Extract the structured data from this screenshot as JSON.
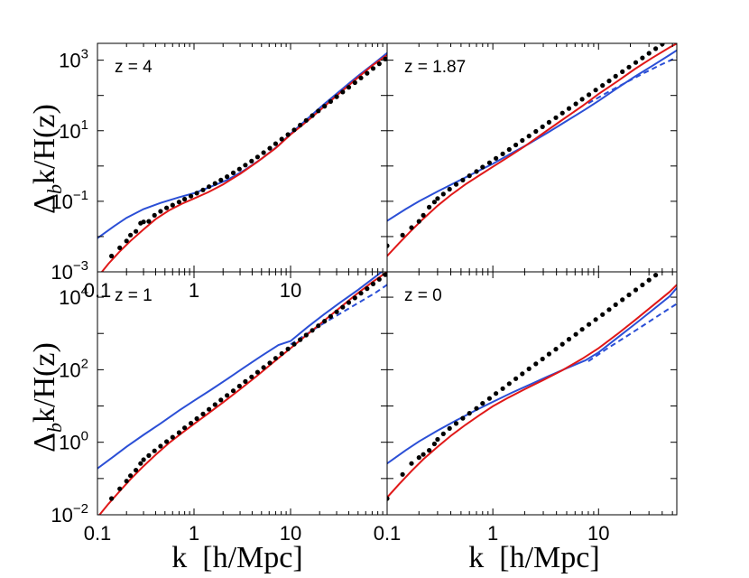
{
  "chart_data": {
    "type": "line",
    "layout": "2x2 panels, log-log axes",
    "xlabel": "k  [h/Mpc]",
    "ylabel": "Δ_b k/H(z)",
    "ylabel_parts": [
      "Δ",
      "b",
      "k/H(z)"
    ],
    "x_ticks": [
      {
        "value": 0.1,
        "label": "0.1"
      },
      {
        "value": 1,
        "label": "1"
      },
      {
        "value": 10,
        "label": "10"
      }
    ],
    "series_styles": {
      "simulation": {
        "color": "#000000",
        "style": "points"
      },
      "model_red": {
        "color": "#e01818",
        "style": "solid"
      },
      "model_blue": {
        "color": "#2b4fd6",
        "style": "solid"
      },
      "model_blue_dashed": {
        "color": "#2b4fd6",
        "style": "dashed"
      }
    },
    "panels": [
      {
        "label": "z = 4",
        "xlim": [
          0.1,
          100
        ],
        "ylim": [
          0.001,
          3000
        ],
        "y_ticks": [
          {
            "value": 0.001,
            "base": "10",
            "exp": "−3"
          },
          {
            "value": 0.1,
            "base": "10",
            "exp": "−1"
          },
          {
            "value": 10,
            "base": "10",
            "exp": "1"
          },
          {
            "value": 1000,
            "base": "10",
            "exp": "3"
          }
        ],
        "points_k": [
          0.14,
          0.17,
          0.2,
          0.22,
          0.25,
          0.28,
          0.3,
          0.34,
          0.39,
          0.45,
          0.52,
          0.6,
          0.7,
          0.8,
          0.93,
          1.07,
          1.24,
          1.43,
          1.65,
          1.9,
          2.2,
          2.55,
          2.95,
          3.4,
          3.95,
          4.55,
          5.25,
          6.1,
          7.0,
          8.1,
          9.4,
          10.9,
          12.6,
          14.5,
          16.8,
          19.4,
          22.5,
          26,
          30,
          34.7,
          40.1,
          46.4,
          53.6,
          62,
          71.7,
          82.9,
          95.8
        ],
        "points_y": [
          0.0028,
          0.0048,
          0.0075,
          0.011,
          0.014,
          0.024,
          0.026,
          0.027,
          0.04,
          0.052,
          0.065,
          0.078,
          0.095,
          0.115,
          0.14,
          0.17,
          0.21,
          0.26,
          0.32,
          0.4,
          0.5,
          0.64,
          0.82,
          1.06,
          1.38,
          1.8,
          2.4,
          3.2,
          4.3,
          5.8,
          7.8,
          10.6,
          14.5,
          19.7,
          26.8,
          36.5,
          49.6,
          67.5,
          91.8,
          124.9,
          169.9,
          231,
          314,
          427,
          581,
          790,
          1075
        ],
        "red_k": [
          0.1,
          0.13,
          0.17,
          0.22,
          0.3,
          0.4,
          0.55,
          0.75,
          1,
          1.4,
          2,
          3,
          4.5,
          7,
          10,
          15,
          22,
          32,
          47,
          70,
          100
        ],
        "red_y": [
          0.0007,
          0.0017,
          0.0038,
          0.0075,
          0.016,
          0.031,
          0.055,
          0.085,
          0.12,
          0.18,
          0.3,
          0.6,
          1.3,
          3.2,
          7.8,
          19,
          47,
          115,
          280,
          700,
          1400
        ],
        "blue_k": [
          0.1,
          0.15,
          0.2,
          0.3,
          0.45,
          0.7,
          1,
          1.5,
          2.2,
          3.3,
          5,
          7.5,
          10,
          15,
          22,
          33,
          50,
          75,
          100
        ],
        "blue_y": [
          0.009,
          0.02,
          0.034,
          0.06,
          0.09,
          0.13,
          0.17,
          0.26,
          0.4,
          0.75,
          1.6,
          3.8,
          8.2,
          22,
          55,
          140,
          360,
          850,
          1600
        ],
        "blue_dash_k": [],
        "blue_dash_y": []
      },
      {
        "label": "z = 1.87",
        "xlim": [
          0.1,
          55
        ],
        "ylim": [
          0.001,
          3000
        ],
        "y_ticks": [],
        "points_k": [
          0.1,
          0.14,
          0.17,
          0.2,
          0.22,
          0.25,
          0.28,
          0.3,
          0.34,
          0.39,
          0.45,
          0.52,
          0.6,
          0.7,
          0.8,
          0.93,
          1.07,
          1.24,
          1.43,
          1.65,
          1.9,
          2.2,
          2.55,
          2.95,
          3.4,
          3.95,
          4.55,
          5.25,
          6.1,
          7.0,
          8.1,
          9.4,
          10.9,
          12.6,
          14.5,
          16.8,
          19.4,
          22.5,
          26,
          30,
          34.7,
          40.1,
          46.4
        ],
        "points_y": [
          0.0055,
          0.011,
          0.018,
          0.027,
          0.04,
          0.068,
          0.095,
          0.12,
          0.16,
          0.22,
          0.3,
          0.4,
          0.53,
          0.7,
          0.93,
          1.24,
          1.65,
          2.2,
          2.95,
          3.95,
          5.3,
          7.1,
          9.6,
          12.9,
          17.4,
          23.5,
          31.7,
          42.8,
          57.8,
          78,
          105,
          142,
          192,
          259,
          350,
          472,
          637,
          860,
          1160,
          1567,
          2115,
          2856,
          3855
        ],
        "red_k": [
          0.1,
          0.13,
          0.17,
          0.22,
          0.3,
          0.4,
          0.55,
          0.75,
          1,
          1.4,
          2,
          3,
          4.5,
          7,
          10,
          15,
          22,
          32,
          47,
          55
        ],
        "red_y": [
          0.0028,
          0.0065,
          0.015,
          0.032,
          0.075,
          0.15,
          0.3,
          0.55,
          0.95,
          1.8,
          3.6,
          8.5,
          20,
          50,
          110,
          250,
          560,
          1150,
          2300,
          2950
        ],
        "blue_k": [
          0.1,
          0.15,
          0.2,
          0.3,
          0.45,
          0.7,
          1,
          1.5,
          2.2,
          3.3,
          5,
          7.5,
          10,
          15,
          22,
          33,
          47,
          55
        ],
        "blue_y": [
          0.028,
          0.06,
          0.1,
          0.19,
          0.35,
          0.68,
          1.15,
          2.3,
          4.3,
          8.8,
          19,
          40,
          70,
          160,
          340,
          720,
          1400,
          1900
        ],
        "blue_dash_k": [
          8,
          12,
          18,
          26,
          38,
          55
        ],
        "blue_dash_y": [
          60,
          120,
          230,
          410,
          720,
          1200
        ]
      },
      {
        "label": "z = 1",
        "xlim": [
          0.1,
          100
        ],
        "ylim": [
          0.01,
          50000
        ],
        "y_ticks": [
          {
            "value": 0.01,
            "base": "10",
            "exp": "−2"
          },
          {
            "value": 1,
            "base": "10",
            "exp": "0"
          },
          {
            "value": 100,
            "base": "10",
            "exp": "2"
          },
          {
            "value": 10000,
            "base": "10",
            "exp": "4"
          }
        ],
        "points_k": [
          0.14,
          0.17,
          0.2,
          0.22,
          0.25,
          0.28,
          0.3,
          0.34,
          0.39,
          0.45,
          0.52,
          0.6,
          0.7,
          0.8,
          0.93,
          1.07,
          1.24,
          1.43,
          1.65,
          1.9,
          2.2,
          2.55,
          2.95,
          3.4,
          3.95,
          4.55,
          5.25,
          6.1,
          7.0,
          8.1,
          9.4,
          10.9,
          12.6,
          14.5,
          16.8,
          19.4,
          22.5,
          26,
          30,
          34.7,
          40.1,
          46.4,
          53.6,
          62,
          71.7,
          82.9,
          95.8
        ],
        "points_y": [
          0.028,
          0.052,
          0.085,
          0.12,
          0.17,
          0.26,
          0.33,
          0.43,
          0.58,
          0.78,
          1.04,
          1.38,
          1.85,
          2.5,
          3.35,
          4.5,
          6.0,
          8.1,
          10.9,
          14.6,
          19.6,
          26.3,
          35.3,
          47.4,
          63.6,
          85.4,
          115,
          154,
          207,
          278,
          374,
          502,
          674,
          905,
          1215,
          1632,
          2190,
          2942,
          3950,
          5305,
          7120,
          9560,
          12840,
          17240,
          23150,
          31080,
          41730
        ],
        "red_k": [
          0.1,
          0.13,
          0.17,
          0.22,
          0.3,
          0.4,
          0.55,
          0.75,
          1,
          1.4,
          2,
          3,
          4.5,
          7,
          10,
          15,
          22,
          32,
          47,
          70,
          100
        ],
        "red_y": [
          0.0085,
          0.02,
          0.045,
          0.095,
          0.22,
          0.45,
          0.95,
          1.8,
          3.2,
          6.2,
          12.5,
          29,
          68,
          180,
          390,
          950,
          2200,
          5000,
          11500,
          26000,
          50000
        ],
        "blue_k": [
          0.1,
          0.15,
          0.2,
          0.3,
          0.45,
          0.7,
          1,
          1.5,
          2.2,
          3.3,
          5,
          7.5,
          10,
          15,
          22,
          33,
          50,
          75,
          100
        ],
        "blue_y": [
          0.19,
          0.42,
          0.75,
          1.6,
          3.3,
          7.5,
          14,
          28,
          55,
          115,
          240,
          480,
          620,
          1500,
          3300,
          7300,
          16000,
          36000,
          65000
        ],
        "blue_dash_k": [
          10,
          15,
          22,
          33,
          50,
          75,
          100
        ],
        "blue_dash_y": [
          500,
          1000,
          1900,
          3600,
          6900,
          13000,
          22000
        ]
      },
      {
        "label": "z = 0",
        "xlim": [
          0.1,
          55
        ],
        "ylim": [
          0.01,
          50000
        ],
        "y_ticks": [],
        "points_k": [
          0.1,
          0.14,
          0.17,
          0.2,
          0.22,
          0.25,
          0.28,
          0.3,
          0.34,
          0.39,
          0.45,
          0.52,
          0.6,
          0.7,
          0.8,
          0.93,
          1.07,
          1.24,
          1.43,
          1.65,
          1.9,
          2.2,
          2.55,
          2.95,
          3.4,
          3.95,
          4.55,
          5.25,
          6.1,
          7.0,
          8.1,
          9.4,
          10.9,
          12.6,
          14.5,
          16.8,
          19.4,
          22.5,
          26,
          30,
          34.7,
          40.1,
          46.4,
          53.6
        ],
        "points_y": [
          0.028,
          0.13,
          0.26,
          0.38,
          0.46,
          0.6,
          0.9,
          1.2,
          1.7,
          2.4,
          3.3,
          4.6,
          6.3,
          8.6,
          11.8,
          16.1,
          22.1,
          30.2,
          41.3,
          56.5,
          77.3,
          106,
          145,
          198,
          271,
          370,
          507,
          693,
          948,
          1297,
          1774,
          2426,
          3318,
          4538,
          6207,
          8489,
          11610,
          15880,
          21720,
          29710,
          40630,
          55570,
          76000,
          104000
        ],
        "red_k": [
          0.1,
          0.13,
          0.17,
          0.22,
          0.3,
          0.4,
          0.55,
          0.75,
          1,
          1.4,
          2,
          3,
          4.5,
          7,
          10,
          15,
          22,
          32,
          47,
          55
        ],
        "red_y": [
          0.03,
          0.07,
          0.16,
          0.34,
          0.75,
          1.5,
          3.0,
          5.6,
          9.8,
          17,
          29,
          52,
          95,
          200,
          390,
          950,
          2300,
          5600,
          14000,
          22000
        ],
        "blue_k": [
          0.1,
          0.15,
          0.2,
          0.3,
          0.45,
          0.7,
          1,
          1.5,
          2.2,
          3.3,
          5,
          7.5,
          10,
          15,
          22,
          33,
          47,
          55
        ],
        "blue_y": [
          0.26,
          0.6,
          1.05,
          2.1,
          4.0,
          7.8,
          13,
          23,
          38,
          65,
          110,
          180,
          300,
          750,
          1800,
          4600,
          10500,
          18000
        ],
        "blue_dash_k": [
          8,
          12,
          18,
          26,
          38,
          55
        ],
        "blue_dash_y": [
          170,
          380,
          800,
          1600,
          3300,
          6600
        ]
      }
    ]
  }
}
